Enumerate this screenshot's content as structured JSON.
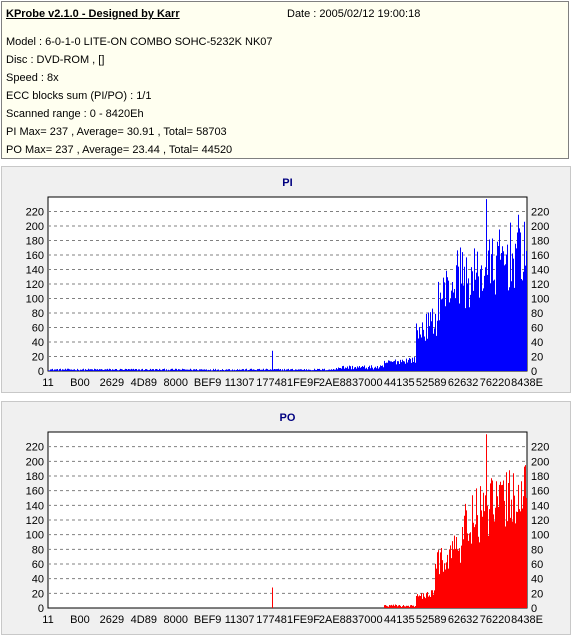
{
  "info": {
    "title": "KProbe v2.1.0 - Designed by Karr",
    "date": "Date : 2005/02/12 19:00:18",
    "model": "Model : 6-0-1-0 LITE-ON COMBO SOHC-5232K NK07",
    "disc": "Disc : DVD-ROM ,  []",
    "speed": "Speed : 8x",
    "ecc": "ECC blocks sum (PI/PO) : 1/1",
    "range": "Scanned range : 0 - 8420Eh",
    "pi_summary": "PI Max= 237 , Average= 30.91 , Total= 58703",
    "po_summary": "PO Max= 237 , Average= 23.44 , Total= 44520"
  },
  "colors": {
    "pi": "#0000ff",
    "po": "#ff0000",
    "grid": "#808080",
    "panel": "#f0f0f0"
  },
  "chart_data": [
    {
      "type": "bar",
      "title": "PI",
      "xlabel": "",
      "ylabel": "",
      "ylim": [
        0,
        240
      ],
      "y_ticks": [
        0,
        20,
        40,
        60,
        80,
        100,
        120,
        140,
        160,
        180,
        200,
        220
      ],
      "x_ticks": [
        "11",
        "B00",
        "2629",
        "4D89",
        "8000",
        "BEF9",
        "11307",
        "17748",
        "1FE9F",
        "2AE88",
        "37000",
        "44135",
        "52589",
        "62632",
        "76220",
        "8438E"
      ],
      "grid": true,
      "max": 237,
      "average": 30.91,
      "total": 58703,
      "spike": {
        "x_tick": "17748",
        "value": 28
      },
      "segments": [
        {
          "from_tick": 0,
          "to_tick": 9,
          "level": 2
        },
        {
          "from_tick": 9,
          "to_tick": 10.5,
          "level": 5
        },
        {
          "from_tick": 10.5,
          "to_tick": 11.5,
          "level": 20
        },
        {
          "from_tick": 11.5,
          "to_tick": 12.2,
          "level": 90
        },
        {
          "from_tick": 12.2,
          "to_tick": 13,
          "level": 175
        },
        {
          "from_tick": 13,
          "to_tick": 15,
          "level": 215
        }
      ]
    },
    {
      "type": "bar",
      "title": "PO",
      "xlabel": "",
      "ylabel": "",
      "ylim": [
        0,
        240
      ],
      "y_ticks": [
        0,
        20,
        40,
        60,
        80,
        100,
        120,
        140,
        160,
        180,
        200,
        220
      ],
      "x_ticks": [
        "11",
        "B00",
        "2629",
        "4D89",
        "8000",
        "BEF9",
        "11307",
        "17748",
        "1FE9F",
        "2AE88",
        "37000",
        "44135",
        "52589",
        "62632",
        "76220",
        "8438E"
      ],
      "grid": true,
      "max": 237,
      "average": 23.44,
      "total": 44520,
      "spike": {
        "x_tick": "17748",
        "value": 28
      },
      "segments": [
        {
          "from_tick": 0,
          "to_tick": 10.5,
          "level": 0
        },
        {
          "from_tick": 10.5,
          "to_tick": 11.5,
          "level": 3
        },
        {
          "from_tick": 11.5,
          "to_tick": 12.1,
          "level": 25
        },
        {
          "from_tick": 12.1,
          "to_tick": 13,
          "level": 110
        },
        {
          "from_tick": 13,
          "to_tick": 15,
          "level": 205
        }
      ]
    }
  ]
}
